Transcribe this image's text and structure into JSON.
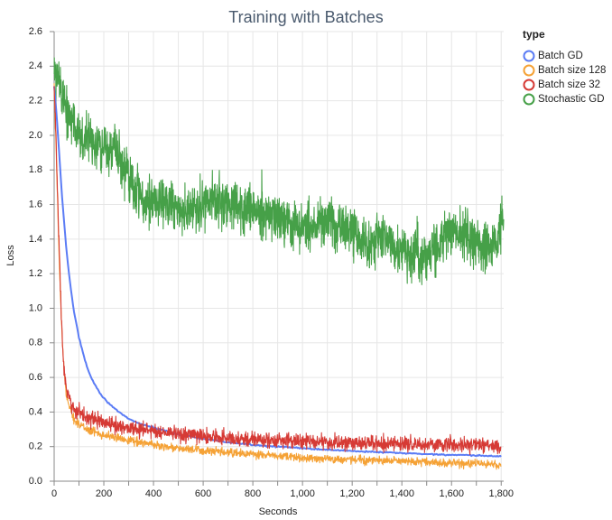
{
  "chart_data": {
    "type": "line",
    "title": "Training with Batches",
    "xlabel": "Seconds",
    "ylabel": "Loss",
    "xlim": [
      0,
      1810
    ],
    "ylim": [
      0,
      2.6
    ],
    "x_ticks": [
      0,
      200,
      400,
      600,
      800,
      1000,
      1200,
      1400,
      1600,
      1800
    ],
    "x_tick_labels": [
      "0",
      "200",
      "400",
      "600",
      "800",
      "1,000",
      "1,200",
      "1,400",
      "1,600",
      "1,800"
    ],
    "y_ticks": [
      0,
      0.2,
      0.4,
      0.6,
      0.8,
      1.0,
      1.2,
      1.4,
      1.6,
      1.8,
      2.0,
      2.2,
      2.4,
      2.6
    ],
    "y_tick_labels": [
      "0.0",
      "0.2",
      "0.4",
      "0.6",
      "0.8",
      "1.0",
      "1.2",
      "1.4",
      "1.6",
      "1.8",
      "2.0",
      "2.2",
      "2.4",
      "2.6"
    ],
    "grid": true,
    "legend": {
      "title": "type",
      "position": "right"
    },
    "series": [
      {
        "name": "Batch GD",
        "color": "#5b7cf5",
        "x": [
          0,
          10,
          20,
          30,
          40,
          50,
          60,
          70,
          80,
          100,
          120,
          140,
          160,
          180,
          200,
          250,
          300,
          350,
          400,
          450,
          500,
          600,
          700,
          800,
          900,
          1000,
          1100,
          1200,
          1300,
          1400,
          1500,
          1600,
          1700,
          1800
        ],
        "values": [
          2.28,
          2.12,
          1.9,
          1.68,
          1.5,
          1.33,
          1.2,
          1.08,
          0.98,
          0.83,
          0.72,
          0.63,
          0.57,
          0.52,
          0.48,
          0.41,
          0.36,
          0.33,
          0.31,
          0.29,
          0.27,
          0.245,
          0.225,
          0.21,
          0.2,
          0.19,
          0.182,
          0.175,
          0.168,
          0.162,
          0.157,
          0.152,
          0.148,
          0.144
        ]
      },
      {
        "name": "Batch size 128",
        "color": "#f5a236",
        "x": [
          0,
          5,
          10,
          15,
          20,
          25,
          30,
          35,
          40,
          50,
          60,
          70,
          80,
          100,
          120,
          150,
          200,
          250,
          300,
          400,
          500,
          600,
          700,
          800,
          900,
          1000,
          1200,
          1400,
          1600,
          1800
        ],
        "values": [
          2.28,
          2.05,
          1.8,
          1.55,
          1.3,
          1.08,
          0.9,
          0.76,
          0.63,
          0.5,
          0.43,
          0.39,
          0.36,
          0.33,
          0.31,
          0.29,
          0.27,
          0.25,
          0.24,
          0.21,
          0.19,
          0.175,
          0.165,
          0.155,
          0.145,
          0.135,
          0.125,
          0.115,
          0.105,
          0.095
        ]
      },
      {
        "name": "Batch size 32",
        "color": "#d63a35",
        "x": [
          0,
          5,
          10,
          15,
          20,
          25,
          30,
          35,
          40,
          50,
          60,
          70,
          80,
          100,
          120,
          150,
          200,
          250,
          300,
          400,
          500,
          600,
          700,
          800,
          900,
          1000,
          1200,
          1400,
          1600,
          1800
        ],
        "values": [
          2.28,
          2.1,
          1.85,
          1.6,
          1.36,
          1.12,
          0.92,
          0.76,
          0.64,
          0.52,
          0.47,
          0.44,
          0.42,
          0.4,
          0.38,
          0.36,
          0.34,
          0.32,
          0.31,
          0.29,
          0.27,
          0.26,
          0.25,
          0.24,
          0.235,
          0.23,
          0.22,
          0.215,
          0.21,
          0.205
        ]
      },
      {
        "name": "Stochastic GD",
        "color": "#46a048",
        "x": [
          0,
          10,
          20,
          30,
          40,
          50,
          60,
          70,
          80,
          100,
          120,
          140,
          160,
          180,
          200,
          220,
          240,
          260,
          280,
          300,
          320,
          340,
          360,
          380,
          400,
          420,
          440,
          460,
          480,
          500,
          520,
          540,
          560,
          580,
          600,
          620,
          640,
          660,
          680,
          700,
          720,
          740,
          760,
          780,
          800,
          820,
          840,
          860,
          880,
          900,
          920,
          940,
          960,
          980,
          1000,
          1020,
          1040,
          1060,
          1080,
          1100,
          1120,
          1140,
          1160,
          1180,
          1200,
          1220,
          1240,
          1260,
          1280,
          1300,
          1320,
          1340,
          1360,
          1380,
          1400,
          1420,
          1440,
          1460,
          1480,
          1500,
          1520,
          1540,
          1560,
          1580,
          1600,
          1620,
          1640,
          1660,
          1680,
          1700,
          1720,
          1740,
          1760,
          1780,
          1800,
          1810
        ],
        "values": [
          2.3,
          2.36,
          2.3,
          2.24,
          2.2,
          2.15,
          2.1,
          2.07,
          2.04,
          2.0,
          1.98,
          1.96,
          1.94,
          1.93,
          1.92,
          1.9,
          1.91,
          1.88,
          1.82,
          1.76,
          1.71,
          1.67,
          1.64,
          1.63,
          1.61,
          1.62,
          1.6,
          1.59,
          1.6,
          1.58,
          1.57,
          1.57,
          1.58,
          1.56,
          1.6,
          1.62,
          1.63,
          1.61,
          1.6,
          1.59,
          1.58,
          1.58,
          1.57,
          1.57,
          1.56,
          1.55,
          1.55,
          1.56,
          1.55,
          1.54,
          1.52,
          1.5,
          1.49,
          1.48,
          1.47,
          1.47,
          1.48,
          1.5,
          1.5,
          1.5,
          1.49,
          1.48,
          1.48,
          1.46,
          1.44,
          1.42,
          1.38,
          1.35,
          1.38,
          1.41,
          1.43,
          1.4,
          1.36,
          1.34,
          1.33,
          1.32,
          1.31,
          1.31,
          1.3,
          1.3,
          1.32,
          1.34,
          1.4,
          1.43,
          1.44,
          1.45,
          1.44,
          1.43,
          1.4,
          1.38,
          1.36,
          1.35,
          1.34,
          1.33,
          1.5,
          1.52
        ]
      }
    ]
  }
}
